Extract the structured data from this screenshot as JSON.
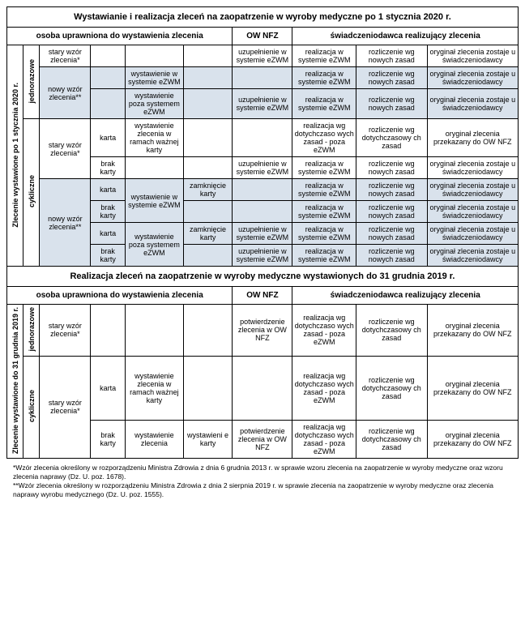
{
  "title1": "Wystawianie i realizacja zleceń na zaopatrzenie w wyroby medyczne po 1 stycznia 2020 r.",
  "header_osoba": "osoba uprawniona do wystawienia zlecenia",
  "header_ow": "OW NFZ",
  "header_sw": "świadczeniodawca realizujący zlecenia",
  "vert_2020": "Zlecenie wystawione po 1 stycznia 2020 r.",
  "vert_jedno": "jednorazowe",
  "vert_cykl": "cykliczne",
  "stary_wzor": "stary wzór zlecenia*",
  "nowy_wzor": "nowy wzór zlecenia**",
  "wyst_ezwm": "wystawienie w systemie eZWM",
  "wyst_poza": "wystawienie poza systemem eZWM",
  "wyst_ramach": "wystawienie zlecenia w ramach ważnej karty",
  "wyst_zlec": "wystawienie zlecenia",
  "wyst_e_karty": "wystawieni e karty",
  "uzup": "uzupełnienie w systemie eZWM",
  "zamk_karty": "zamknięcie karty",
  "real_ezwm": "realizacja w systemie eZWM",
  "real_wg": "realizacja wg dotychczaso wych zasad - poza eZWM",
  "rozl_now": "rozliczenie wg nowych zasad",
  "rozl_dot": "rozliczenie wg dotychczasowy ch zasad",
  "rozl_dot2": "rozliczenie wg dotychczasowy ch  zasad",
  "oryg_sw": "oryginał zlecenia zostaje u świadczeniodawcy",
  "oryg_ow": "oryginał zlecenia przekazany do OW NFZ",
  "karta": "karta",
  "brak_karty": "brak karty",
  "title2": "Realizacja zleceń na zaopatrzenie w wyroby medyczne wystawionych do 31 grudnia 2019 r.",
  "vert_2019": "Zlecenie wystawione do 31 grudnia 2019 r.",
  "potw_ow": "potwierdzenie zlecenia w OW NFZ",
  "footnote": "*Wzór zlecenia określony w rozporządzeniu Ministra Zdrowia z dnia 6 grudnia 2013 r. w sprawie wzoru zlecenia na zaopatrzenie w wyroby medyczne oraz wzoru zlecenia naprawy (Dz. U. poz. 1678).\n**Wzór zlecenia określony w rozporządzeniu Ministra Zdrowia z dnia 2 sierpnia 2019 r. w sprawie zlecenia na zaopatrzenie w wyroby medyczne oraz zlecenia naprawy wyrobu medycznego (Dz. U. poz. 1555)."
}
